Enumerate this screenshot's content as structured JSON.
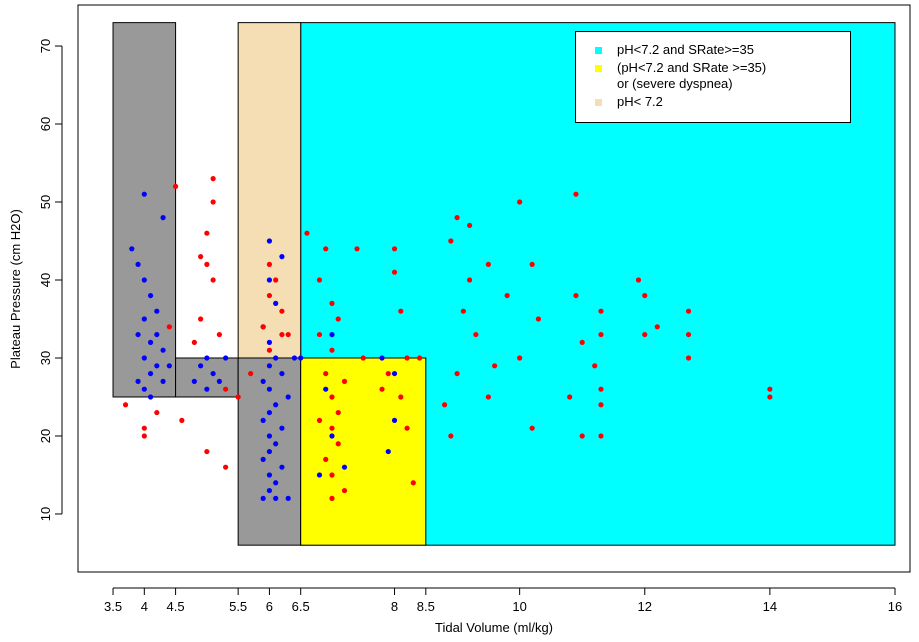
{
  "chart_data": {
    "type": "scatter",
    "xlabel": "Tidal Volume (ml/kg)",
    "ylabel": "Plateau Pressure (cm H2O)",
    "xlim": [
      2.94,
      16.24
    ],
    "ylim": [
      2.56,
      75.26
    ],
    "xticks": [
      3.5,
      4,
      4.5,
      5.5,
      6,
      6.5,
      8,
      8.5,
      10,
      12,
      14,
      16
    ],
    "yticks": [
      10,
      20,
      30,
      40,
      50,
      60,
      70
    ],
    "regions": [
      {
        "color": "#00ffff",
        "x": [
          6.5,
          16
        ],
        "y": [
          6,
          73
        ]
      },
      {
        "color": "#999999",
        "x": [
          3.5,
          4.5
        ],
        "y": [
          25,
          73
        ]
      },
      {
        "color": "#999999",
        "x": [
          4.5,
          5.5
        ],
        "y": [
          25,
          30
        ]
      },
      {
        "color": "#f5deb3",
        "x": [
          5.5,
          6.5
        ],
        "y": [
          30,
          73
        ]
      },
      {
        "color": "#999999",
        "x": [
          5.5,
          6.5
        ],
        "y": [
          6,
          30
        ]
      },
      {
        "color": "#ffff00",
        "x": [
          6.5,
          8.5
        ],
        "y": [
          6,
          30
        ]
      }
    ],
    "legend": [
      {
        "label": "pH<7.2 and SRate>=35",
        "color": "#00ffff"
      },
      {
        "label": "(pH<7.2 and SRate >=35)\n or (severe dyspnea)",
        "color": "#ffff00"
      },
      {
        "label": "pH< 7.2",
        "color": "#f5deb3"
      }
    ],
    "series": [
      {
        "color": "#0000ff",
        "x": [
          3.8,
          4,
          4.3,
          3.9,
          4,
          4.1,
          4.2,
          4,
          3.9,
          4.1,
          4,
          4.2,
          4.1,
          3.9,
          4,
          4.3,
          4.4,
          4.3,
          4.2,
          4.1,
          4.9,
          5,
          5.1,
          5.2,
          5,
          4.8,
          5.3,
          6,
          6.2,
          6,
          6.1,
          5.9,
          6,
          6.1,
          6,
          6.2,
          5.9,
          6,
          6.3,
          6.1,
          6,
          5.9,
          6.2,
          6,
          6.1,
          6,
          5.9,
          6.2,
          6,
          6.1,
          6,
          6.1,
          6.3,
          5.9,
          6.4,
          6.5,
          7,
          7.8,
          8,
          8,
          7.9,
          6.9,
          7.2,
          6.8,
          7
        ],
        "values": [
          44,
          51,
          48,
          42,
          40,
          38,
          36,
          35,
          33,
          32,
          30,
          29,
          28,
          27,
          26,
          27,
          29,
          31,
          33,
          25,
          29,
          30,
          28,
          27,
          26,
          27,
          30,
          45,
          43,
          40,
          37,
          34,
          32,
          30,
          29,
          28,
          27,
          26,
          25,
          24,
          23,
          22,
          21,
          20,
          19,
          18,
          17,
          16,
          15,
          14,
          13,
          12,
          12,
          12,
          30,
          30,
          33,
          30,
          28,
          22,
          18,
          26,
          16,
          15,
          20
        ]
      },
      {
        "color": "#ff0000",
        "x": [
          4,
          4,
          4.2,
          3.7,
          4.5,
          4.4,
          4.9,
          5.1,
          5.1,
          5,
          5,
          5.1,
          4.9,
          5.2,
          4.8,
          5.3,
          5,
          5.3,
          4.6,
          5.5,
          6,
          6.1,
          6,
          6.2,
          5.9,
          6.3,
          6,
          6.6,
          6.8,
          6.9,
          7,
          7.1,
          6.8,
          7,
          6.9,
          7.2,
          7,
          7.1,
          6.8,
          7,
          7.1,
          6.9,
          7,
          7.2,
          7,
          7.5,
          7.4,
          7.8,
          8,
          8,
          8.1,
          8.2,
          7.9,
          8.1,
          8.2,
          8.3,
          8.4,
          8.9,
          9,
          9.2,
          9.2,
          9.5,
          9.1,
          9.3,
          9.6,
          9,
          8.8,
          8.9,
          9.5,
          10,
          10.2,
          10.3,
          9.8,
          10,
          10.2,
          10.9,
          10.9,
          11,
          11.3,
          11.3,
          11.2,
          11.3,
          11.3,
          11.3,
          11,
          10.8,
          11.9,
          12,
          12,
          12.2,
          12.7,
          12.7,
          12.7,
          14,
          14,
          6.2,
          5.7
        ],
        "values": [
          21,
          20,
          23,
          24,
          52,
          34,
          43,
          53,
          50,
          46,
          42,
          40,
          35,
          33,
          32,
          26,
          18,
          16,
          22,
          25,
          42,
          40,
          38,
          36,
          34,
          33,
          31,
          46,
          40,
          44,
          37,
          35,
          33,
          31,
          28,
          27,
          25,
          23,
          22,
          21,
          19,
          17,
          15,
          13,
          12,
          30,
          44,
          26,
          44,
          41,
          36,
          30,
          28,
          25,
          21,
          14,
          30,
          45,
          48,
          47,
          40,
          42,
          36,
          33,
          29,
          28,
          24,
          20,
          25,
          50,
          42,
          35,
          38,
          30,
          21,
          51,
          38,
          32,
          33,
          36,
          29,
          26,
          24,
          20,
          20,
          25,
          40,
          38,
          33,
          34,
          36,
          33,
          30,
          26,
          25,
          33,
          28
        ]
      }
    ]
  }
}
